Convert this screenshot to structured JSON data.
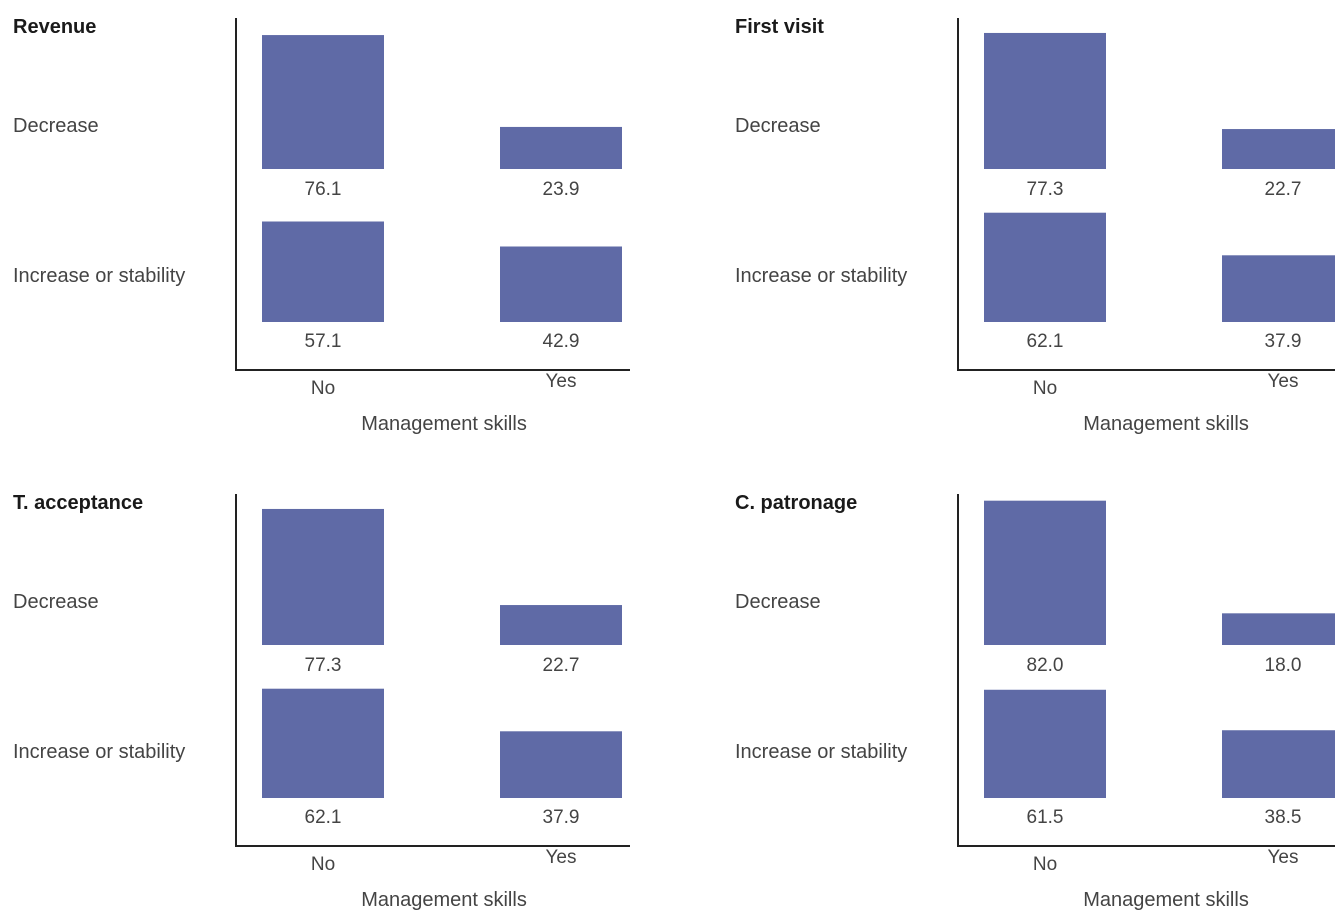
{
  "chart_data": [
    {
      "type": "bar",
      "title": "Revenue",
      "xlabel": "Management skills",
      "categories": [
        "No",
        "Yes"
      ],
      "rows": [
        {
          "label": "Decrease",
          "values": [
            76.1,
            23.9
          ],
          "value_labels": [
            "76.1",
            "23.9"
          ]
        },
        {
          "label": "Increase or stability",
          "values": [
            57.1,
            42.9
          ],
          "value_labels": [
            "57.1",
            "42.9"
          ]
        }
      ],
      "bar_color": "#5f6aa6"
    },
    {
      "type": "bar",
      "title": "First visit",
      "xlabel": "Management skills",
      "categories": [
        "No",
        "Yes"
      ],
      "rows": [
        {
          "label": "Decrease",
          "values": [
            77.3,
            22.7
          ],
          "value_labels": [
            "77.3",
            "22.7"
          ]
        },
        {
          "label": "Increase or stability",
          "values": [
            62.1,
            37.9
          ],
          "value_labels": [
            "62.1",
            "37.9"
          ]
        }
      ],
      "bar_color": "#5f6aa6"
    },
    {
      "type": "bar",
      "title": "T. acceptance",
      "xlabel": "Management skills",
      "categories": [
        "No",
        "Yes"
      ],
      "rows": [
        {
          "label": "Decrease",
          "values": [
            77.3,
            22.7
          ],
          "value_labels": [
            "77.3",
            "22.7"
          ]
        },
        {
          "label": "Increase or stability",
          "values": [
            62.1,
            37.9
          ],
          "value_labels": [
            "62.1",
            "37.9"
          ]
        }
      ],
      "bar_color": "#5f6aa6"
    },
    {
      "type": "bar",
      "title": "C. patronage",
      "xlabel": "Management skills",
      "categories": [
        "No",
        "Yes"
      ],
      "rows": [
        {
          "label": "Decrease",
          "values": [
            82.0,
            18.0
          ],
          "value_labels": [
            "82.0",
            "18.0"
          ]
        },
        {
          "label": "Increase or stability",
          "values": [
            61.5,
            38.5
          ],
          "value_labels": [
            "61.5",
            "38.5"
          ]
        }
      ],
      "bar_color": "#5f6aa6"
    }
  ]
}
